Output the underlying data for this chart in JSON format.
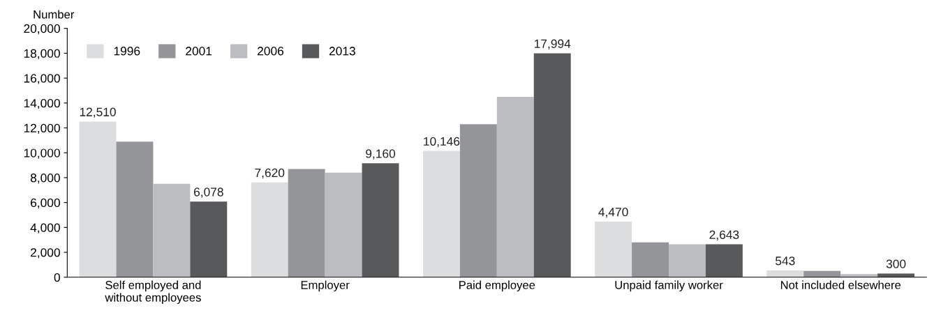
{
  "chart_data": {
    "type": "bar",
    "ylabel": "Number",
    "categories": [
      "Self employed and\nwithout employees",
      "Employer",
      "Paid employee",
      "Unpaid family worker",
      "Not included elsewhere"
    ],
    "series": [
      {
        "name": "1996",
        "color": "#dcdddf",
        "values": [
          12510,
          7620,
          10146,
          4470,
          543
        ],
        "value_labels": [
          "12,510",
          "7,620",
          "10,146",
          "4,470",
          "543"
        ]
      },
      {
        "name": "2001",
        "color": "#939598",
        "values": [
          10900,
          8700,
          12300,
          2800,
          500
        ]
      },
      {
        "name": "2006",
        "color": "#bcbdc0",
        "values": [
          7500,
          8400,
          14500,
          2650,
          250
        ]
      },
      {
        "name": "2013",
        "color": "#58595b",
        "values": [
          6078,
          9160,
          17994,
          2643,
          300
        ],
        "value_labels": [
          "6,078",
          "9,160",
          "17,994",
          "2,643",
          "300"
        ]
      }
    ],
    "ylim": [
      0,
      20000
    ],
    "yticks": [
      {
        "value": 0,
        "label": "0"
      },
      {
        "value": 2000,
        "label": "2,000"
      },
      {
        "value": 4000,
        "label": "4,000"
      },
      {
        "value": 6000,
        "label": "6,000"
      },
      {
        "value": 8000,
        "label": "8,000"
      },
      {
        "value": 10000,
        "label": "10,000"
      },
      {
        "value": 12000,
        "label": "12,000"
      },
      {
        "value": 14000,
        "label": "14,000"
      },
      {
        "value": 16000,
        "label": "16,000"
      },
      {
        "value": 18000,
        "label": "18,000"
      },
      {
        "value": 20000,
        "label": "20,000"
      }
    ],
    "grid": false,
    "legend": "top left"
  }
}
